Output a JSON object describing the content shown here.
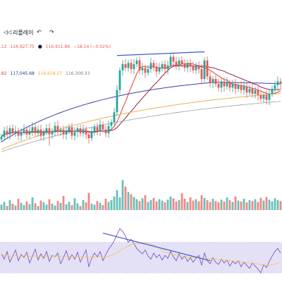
{
  "toolbar": {
    "replay_icon": "rewind-icon",
    "replay_label": "리플레이",
    "undo_icon": "undo-icon",
    "redo_icon": "redo-icon"
  },
  "ohlc_legend": {
    "left_value": ".12",
    "close_value": "116,927.75",
    "last_value": "116,911.86",
    "change_text": "−18.14 (−0.02%)"
  },
  "ma_legend": {
    "values": [
      ".82",
      "117,045.68",
      "116,618.57",
      "116,309.33"
    ],
    "colors": [
      "#e53935",
      "#1e3a8a",
      "#f5a623",
      "#7b7b7b"
    ]
  },
  "colors": {
    "up": "#26a69a",
    "down": "#ef5350",
    "ma_red": "#e53935",
    "ma_blue": "#3b3fa8",
    "ma_orange": "#e8b25a",
    "ma_gray": "#9e9e9e",
    "trendline": "#3d59c7",
    "rsi_line": "#7e57c2",
    "rsi_band": "#e4e1f7"
  },
  "chart_data": [
    {
      "type": "candlestick",
      "trendline_visible": true,
      "moving_averages": 4,
      "closes": [
        112.4,
        112.9,
        112.6,
        113.1,
        112.7,
        112.9,
        112.5,
        112.8,
        113.0,
        112.6,
        112.9,
        113.2,
        112.7,
        113.0,
        112.5,
        112.8,
        113.1,
        112.6,
        112.9,
        113.3,
        112.8,
        113.0,
        112.6,
        112.9,
        113.2,
        112.5,
        112.8,
        113.1,
        112.7,
        113.0,
        112.6,
        112.3,
        112.8,
        113.2,
        112.9,
        113.4,
        113.0,
        112.7,
        113.3,
        113.6,
        114.4,
        116.2,
        117.8,
        118.3,
        118.0,
        118.4,
        117.9,
        118.3,
        118.6,
        117.8,
        118.0,
        117.6,
        117.9,
        118.4,
        118.1,
        117.7,
        118.0,
        118.3,
        117.9,
        118.2,
        118.9,
        118.5,
        118.2,
        118.6,
        118.3,
        118.0,
        118.4,
        118.1,
        117.8,
        118.2,
        117.9,
        117.1,
        118.6,
        117.3,
        116.8,
        117.1,
        116.7,
        116.4,
        116.9,
        116.5,
        116.8,
        116.4,
        116.7,
        116.3,
        116.6,
        116.2,
        116.5,
        116.0,
        116.3,
        115.9,
        116.2,
        115.8,
        115.5,
        115.8,
        115.4,
        115.9,
        116.3,
        116.6,
        116.9,
        116.7
      ],
      "candles_shown": 100
    },
    {
      "type": "bar",
      "series": "volume",
      "values": [
        12,
        18,
        9,
        22,
        14,
        10,
        25,
        16,
        11,
        19,
        13,
        28,
        15,
        9,
        21,
        17,
        12,
        24,
        14,
        10,
        20,
        16,
        31,
        13,
        18,
        11,
        26,
        15,
        9,
        22,
        17,
        38,
        14,
        12,
        20,
        16,
        11,
        25,
        18,
        22,
        30,
        44,
        28,
        66,
        52,
        40,
        35,
        29,
        24,
        20,
        26,
        33,
        18,
        22,
        27,
        19,
        24,
        21,
        17,
        23,
        30,
        26,
        19,
        22,
        37,
        25,
        18,
        28,
        21,
        24,
        19,
        33,
        27,
        22,
        18,
        25,
        20,
        17,
        23,
        19,
        28,
        22,
        18,
        30,
        21,
        19,
        25,
        17,
        22,
        20,
        24,
        18,
        27,
        21,
        29,
        23,
        19,
        26,
        22,
        20
      ],
      "ylim": [
        0,
        70
      ]
    },
    {
      "type": "line",
      "series": "rsi",
      "values": [
        55,
        48,
        58,
        44,
        52,
        60,
        46,
        54,
        50,
        57,
        43,
        52,
        61,
        47,
        55,
        49,
        58,
        45,
        53,
        51,
        56,
        42,
        50,
        59,
        47,
        54,
        48,
        57,
        44,
        52,
        60,
        38,
        49,
        56,
        51,
        58,
        46,
        54,
        61,
        66,
        72,
        80,
        88,
        84,
        78,
        70,
        74,
        68,
        62,
        58,
        55,
        60,
        52,
        48,
        56,
        50,
        54,
        47,
        53,
        49,
        58,
        51,
        46,
        55,
        48,
        52,
        45,
        50,
        44,
        49,
        53,
        40,
        56,
        46,
        42,
        50,
        44,
        41,
        48,
        43,
        47,
        39,
        45,
        42,
        46,
        38,
        44,
        40,
        36,
        43,
        39,
        35,
        30,
        41,
        37,
        45,
        52,
        58,
        62,
        56
      ],
      "ylim": [
        20,
        90
      ]
    }
  ]
}
